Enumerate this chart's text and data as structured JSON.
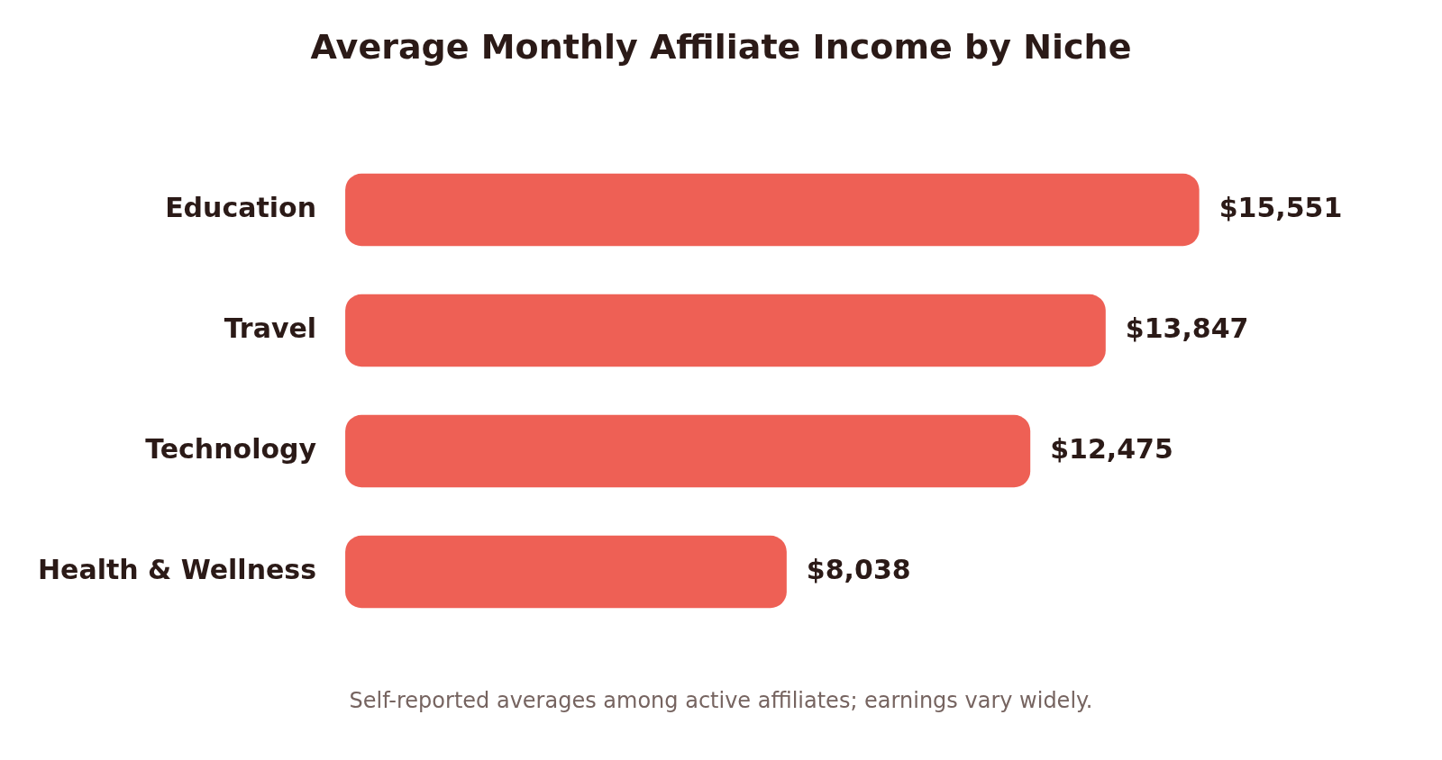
{
  "chart_data": {
    "type": "bar",
    "orientation": "horizontal",
    "title": "Average Monthly Affiliate Income by Niche",
    "categories": [
      "Education",
      "Travel",
      "Technology",
      "Health & Wellness"
    ],
    "values": [
      15551,
      13847,
      12475,
      8038
    ],
    "value_labels": [
      "$15,551",
      "$13,847",
      "$12,475",
      "$8,038"
    ],
    "color": "#ee6055",
    "annotations": [
      "Self-reported averages among active affiliates; earnings vary widely."
    ]
  }
}
